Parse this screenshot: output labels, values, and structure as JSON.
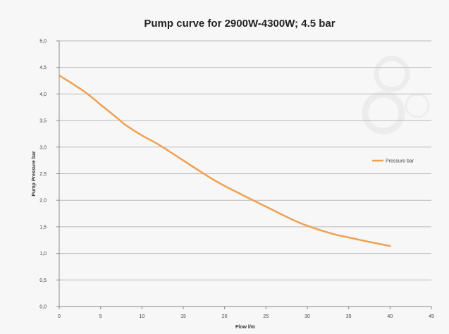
{
  "chart_data": {
    "type": "line",
    "title": "Pump curve for 2900W-4300W; 4.5 bar",
    "xlabel": "Flow l/m",
    "ylabel": "Pump Pressure bar",
    "xlim": [
      0,
      45
    ],
    "ylim": [
      0,
      5
    ],
    "x_ticks": [
      "0",
      "5",
      "10",
      "15",
      "20",
      "25",
      "30",
      "35",
      "40",
      "45"
    ],
    "y_ticks": [
      "0,0",
      "0,5",
      "1,0",
      "1,5",
      "2,0",
      "2,5",
      "3,0",
      "3,5",
      "4,0",
      "4,5",
      "5,0"
    ],
    "grid": "horizontal",
    "legend_position": "right",
    "series": [
      {
        "name": "Pressure bar",
        "color": "#f0a050",
        "x": [
          0,
          3,
          5,
          7,
          8,
          10,
          12,
          15,
          18,
          20,
          25,
          28,
          30,
          33,
          35,
          38,
          40
        ],
        "y": [
          4.35,
          4.05,
          3.8,
          3.55,
          3.42,
          3.22,
          3.05,
          2.75,
          2.45,
          2.27,
          1.88,
          1.65,
          1.52,
          1.37,
          1.3,
          1.2,
          1.14
        ]
      }
    ]
  }
}
